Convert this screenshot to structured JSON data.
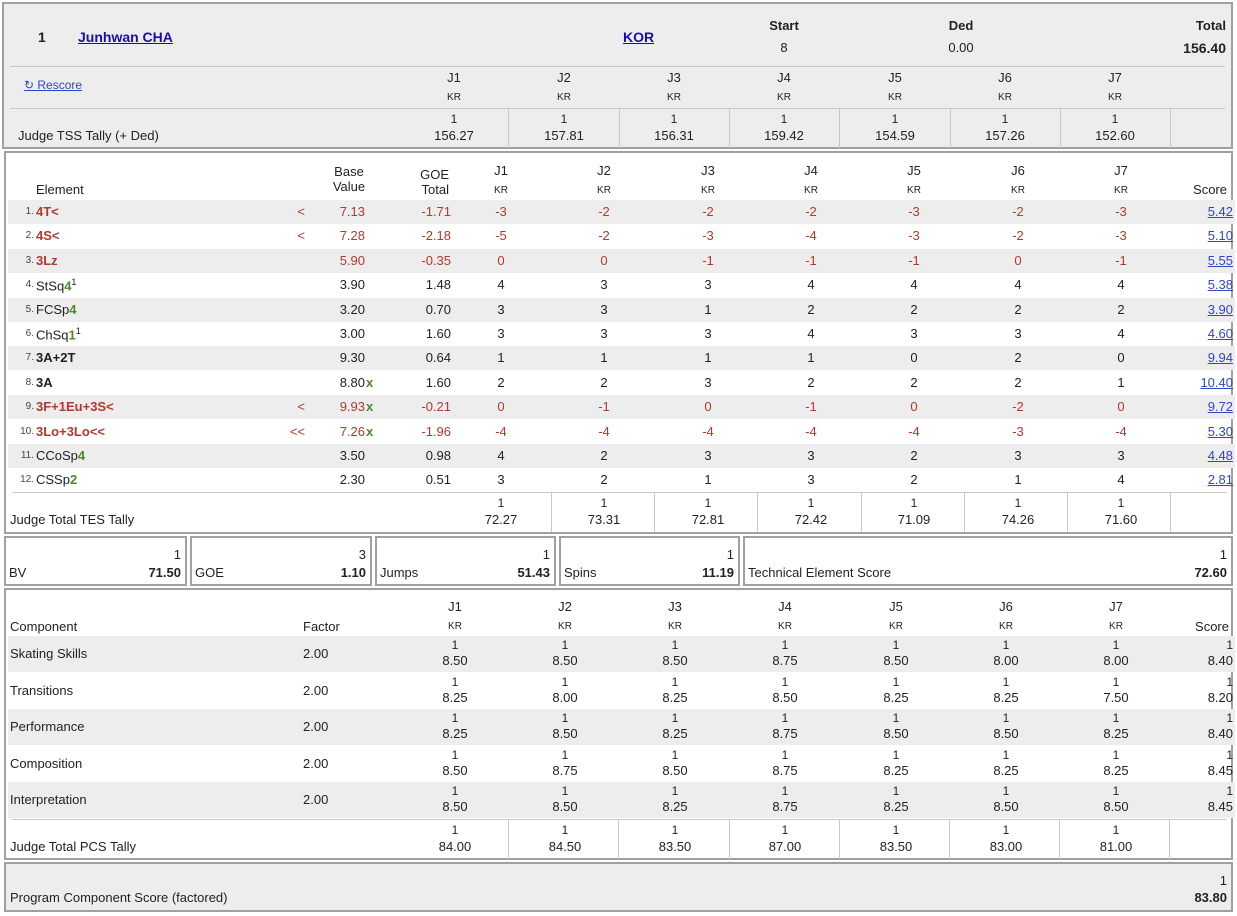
{
  "header": {
    "rank": "1",
    "skater": "Junhwan CHA",
    "nation": "KOR",
    "start_label": "Start",
    "start_value": "8",
    "ded_label": "Ded",
    "ded_value": "0.00",
    "total_label": "Total",
    "total_value": "156.40",
    "rescore_label": "↻ Rescore",
    "judge_tss_label": "Judge TSS Tally (+ Ded)",
    "judges": [
      {
        "name": "J1",
        "nat": "KR",
        "rank": "1",
        "value": "156.27"
      },
      {
        "name": "J2",
        "nat": "KR",
        "rank": "1",
        "value": "157.81"
      },
      {
        "name": "J3",
        "nat": "KR",
        "rank": "1",
        "value": "156.31"
      },
      {
        "name": "J4",
        "nat": "KR",
        "rank": "1",
        "value": "159.42"
      },
      {
        "name": "J5",
        "nat": "KR",
        "rank": "1",
        "value": "154.59"
      },
      {
        "name": "J6",
        "nat": "KR",
        "rank": "1",
        "value": "157.26"
      },
      {
        "name": "J7",
        "nat": "KR",
        "rank": "1",
        "value": "152.60"
      }
    ]
  },
  "elements": {
    "headers": {
      "element": "Element",
      "base_value": [
        "Base",
        "Value"
      ],
      "goe_total": [
        "GOE",
        "Total"
      ],
      "score": "Score"
    },
    "judges": [
      {
        "name": "J1",
        "nat": "KR"
      },
      {
        "name": "J2",
        "nat": "KR"
      },
      {
        "name": "J3",
        "nat": "KR"
      },
      {
        "name": "J4",
        "nat": "KR"
      },
      {
        "name": "J5",
        "nat": "KR"
      },
      {
        "name": "J6",
        "nat": "KR"
      },
      {
        "name": "J7",
        "nat": "KR"
      }
    ],
    "rows": [
      {
        "num": "1.",
        "base": "4T",
        "level": "",
        "mark": "<",
        "sup": "",
        "info": "<",
        "bv": "7.13",
        "x": "",
        "goe": "-1.71",
        "j": [
          "-3",
          "-2",
          "-2",
          "-2",
          "-3",
          "-2",
          "-3"
        ],
        "score": "5.42",
        "style": "red"
      },
      {
        "num": "2.",
        "base": "4S",
        "level": "",
        "mark": "<",
        "sup": "",
        "info": "<",
        "bv": "7.28",
        "x": "",
        "goe": "-2.18",
        "j": [
          "-5",
          "-2",
          "-3",
          "-4",
          "-3",
          "-2",
          "-3"
        ],
        "score": "5.10",
        "style": "red"
      },
      {
        "num": "3.",
        "base": "3Lz",
        "level": "",
        "mark": "",
        "sup": "",
        "info": "",
        "bv": "5.90",
        "x": "",
        "goe": "-0.35",
        "j": [
          "0",
          "0",
          "-1",
          "-1",
          "-1",
          "0",
          "-1"
        ],
        "score": "5.55",
        "style": "red"
      },
      {
        "num": "4.",
        "base": "StSq",
        "level": "4",
        "mark": "",
        "sup": "1",
        "info": "",
        "bv": "3.90",
        "x": "",
        "goe": "1.48",
        "j": [
          "4",
          "3",
          "3",
          "4",
          "4",
          "4",
          "4"
        ],
        "score": "5.38",
        "style": "normal"
      },
      {
        "num": "5.",
        "base": "FCSp",
        "level": "4",
        "mark": "",
        "sup": "",
        "info": "",
        "bv": "3.20",
        "x": "",
        "goe": "0.70",
        "j": [
          "3",
          "3",
          "1",
          "2",
          "2",
          "2",
          "2"
        ],
        "score": "3.90",
        "style": "normal"
      },
      {
        "num": "6.",
        "base": "ChSq",
        "level": "1",
        "mark": "",
        "sup": "1",
        "info": "",
        "bv": "3.00",
        "x": "",
        "goe": "1.60",
        "j": [
          "3",
          "3",
          "3",
          "4",
          "3",
          "3",
          "4"
        ],
        "score": "4.60",
        "style": "normal"
      },
      {
        "num": "7.",
        "base": "3A+2T",
        "level": "",
        "mark": "",
        "sup": "",
        "info": "",
        "bv": "9.30",
        "x": "",
        "goe": "0.64",
        "j": [
          "1",
          "1",
          "1",
          "1",
          "0",
          "2",
          "0"
        ],
        "score": "9.94",
        "style": "bold"
      },
      {
        "num": "8.",
        "base": "3A",
        "level": "",
        "mark": "",
        "sup": "",
        "info": "",
        "bv": "8.80",
        "x": "x",
        "goe": "1.60",
        "j": [
          "2",
          "2",
          "3",
          "2",
          "2",
          "2",
          "1"
        ],
        "score": "10.40",
        "style": "bold"
      },
      {
        "num": "9.",
        "base": "3F+1Eu+3S",
        "level": "",
        "mark": "<",
        "sup": "",
        "info": "<",
        "bv": "9.93",
        "x": "x",
        "goe": "-0.21",
        "j": [
          "0",
          "-1",
          "0",
          "-1",
          "0",
          "-2",
          "0"
        ],
        "score": "9.72",
        "style": "red"
      },
      {
        "num": "10.",
        "base": "3Lo+3Lo",
        "level": "",
        "mark": "<<",
        "sup": "",
        "info": "<<",
        "bv": "7.26",
        "x": "x",
        "goe": "-1.96",
        "j": [
          "-4",
          "-4",
          "-4",
          "-4",
          "-4",
          "-3",
          "-4"
        ],
        "score": "5.30",
        "style": "red"
      },
      {
        "num": "11.",
        "base": "CCoSp",
        "level": "4",
        "mark": "",
        "sup": "",
        "info": "",
        "bv": "3.50",
        "x": "",
        "goe": "0.98",
        "j": [
          "4",
          "2",
          "3",
          "3",
          "2",
          "3",
          "3"
        ],
        "score": "4.48",
        "style": "normal"
      },
      {
        "num": "12.",
        "base": "CSSp",
        "level": "2",
        "mark": "",
        "sup": "",
        "info": "",
        "bv": "2.30",
        "x": "",
        "goe": "0.51",
        "j": [
          "3",
          "2",
          "1",
          "3",
          "2",
          "1",
          "4"
        ],
        "score": "2.81",
        "style": "normal"
      }
    ],
    "tes_tally_label": "Judge Total TES Tally",
    "tes_tally": [
      {
        "rank": "1",
        "value": "72.27"
      },
      {
        "rank": "1",
        "value": "73.31"
      },
      {
        "rank": "1",
        "value": "72.81"
      },
      {
        "rank": "1",
        "value": "72.42"
      },
      {
        "rank": "1",
        "value": "71.09"
      },
      {
        "rank": "1",
        "value": "74.26"
      },
      {
        "rank": "1",
        "value": "71.60"
      }
    ]
  },
  "summary": {
    "bv": {
      "label": "BV",
      "rank": "1",
      "value": "71.50"
    },
    "goe": {
      "label": "GOE",
      "rank": "3",
      "value": "1.10"
    },
    "jumps": {
      "label": "Jumps",
      "rank": "1",
      "value": "51.43"
    },
    "spins": {
      "label": "Spins",
      "rank": "1",
      "value": "11.19"
    },
    "tes": {
      "label": "Technical Element Score",
      "rank": "1",
      "value": "72.60"
    }
  },
  "components": {
    "headers": {
      "component": "Component",
      "factor": "Factor",
      "score": "Score"
    },
    "judges": [
      {
        "name": "J1",
        "nat": "KR"
      },
      {
        "name": "J2",
        "nat": "KR"
      },
      {
        "name": "J3",
        "nat": "KR"
      },
      {
        "name": "J4",
        "nat": "KR"
      },
      {
        "name": "J5",
        "nat": "KR"
      },
      {
        "name": "J6",
        "nat": "KR"
      },
      {
        "name": "J7",
        "nat": "KR"
      }
    ],
    "rows": [
      {
        "name": "Skating Skills",
        "factor": "2.00",
        "j": [
          "8.50",
          "8.50",
          "8.50",
          "8.75",
          "8.50",
          "8.00",
          "8.00"
        ],
        "rank": "1",
        "score": "8.40"
      },
      {
        "name": "Transitions",
        "factor": "2.00",
        "j": [
          "8.25",
          "8.00",
          "8.25",
          "8.50",
          "8.25",
          "8.25",
          "7.50"
        ],
        "rank": "1",
        "score": "8.20"
      },
      {
        "name": "Performance",
        "factor": "2.00",
        "j": [
          "8.25",
          "8.50",
          "8.25",
          "8.75",
          "8.50",
          "8.50",
          "8.25"
        ],
        "rank": "1",
        "score": "8.40"
      },
      {
        "name": "Composition",
        "factor": "2.00",
        "j": [
          "8.50",
          "8.75",
          "8.50",
          "8.75",
          "8.25",
          "8.25",
          "8.25"
        ],
        "rank": "1",
        "score": "8.45"
      },
      {
        "name": "Interpretation",
        "factor": "2.00",
        "j": [
          "8.50",
          "8.50",
          "8.25",
          "8.75",
          "8.25",
          "8.50",
          "8.50"
        ],
        "rank": "1",
        "score": "8.45"
      }
    ],
    "judge_rank": "1",
    "pcs_tally_label": "Judge Total PCS Tally",
    "pcs_tally": [
      {
        "rank": "1",
        "value": "84.00"
      },
      {
        "rank": "1",
        "value": "84.50"
      },
      {
        "rank": "1",
        "value": "83.50"
      },
      {
        "rank": "1",
        "value": "87.00"
      },
      {
        "rank": "1",
        "value": "83.50"
      },
      {
        "rank": "1",
        "value": "83.00"
      },
      {
        "rank": "1",
        "value": "81.00"
      }
    ]
  },
  "pcs_total": {
    "label": "Program Component Score (factored)",
    "rank": "1",
    "value": "83.80"
  }
}
